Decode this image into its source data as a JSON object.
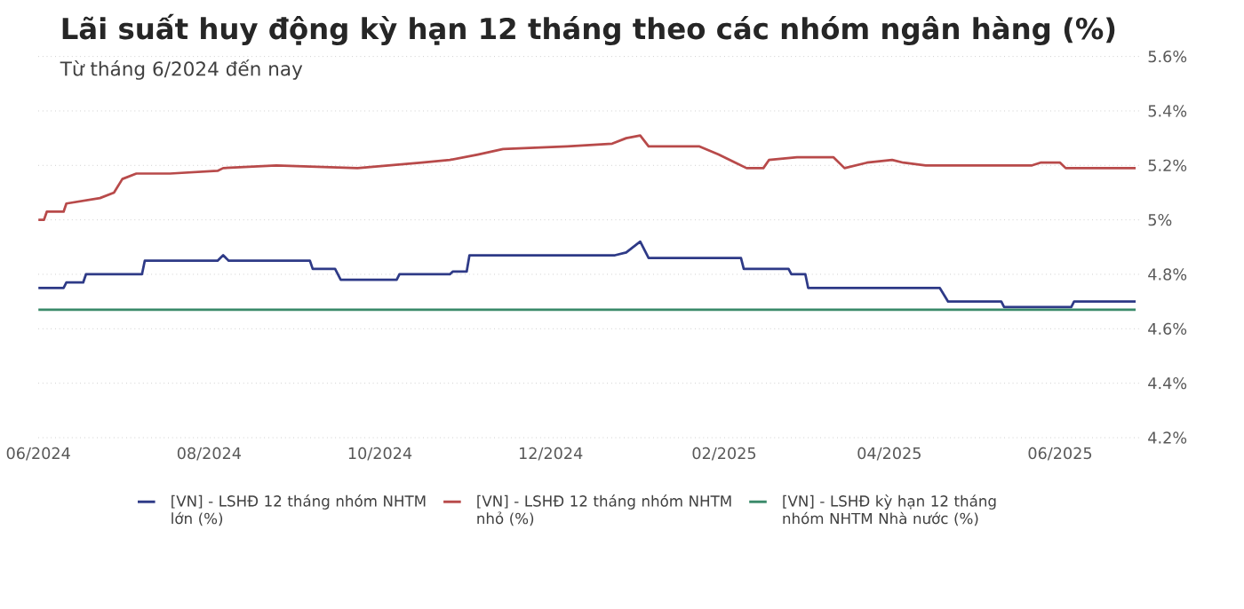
{
  "chart_data": {
    "type": "line",
    "title": "Lãi suất huy động kỳ hạn 12 tháng theo các nhóm ngân hàng (%)",
    "subtitle": "Từ tháng 6/2024 đến nay",
    "xlim": [
      "2024-06-01",
      "2025-06-30"
    ],
    "xticks": [
      {
        "value": "2024-06-01",
        "label": "06/2024"
      },
      {
        "value": "2024-08-01",
        "label": "08/2024"
      },
      {
        "value": "2024-10-01",
        "label": "10/2024"
      },
      {
        "value": "2024-12-01",
        "label": "12/2024"
      },
      {
        "value": "2025-02-01",
        "label": "02/2025"
      },
      {
        "value": "2025-04-01",
        "label": "04/2025"
      },
      {
        "value": "2025-06-01",
        "label": "06/2025"
      }
    ],
    "ylim": [
      4.2,
      5.6
    ],
    "yticks": [
      {
        "value": 4.2,
        "label": "4.2%"
      },
      {
        "value": 4.4,
        "label": "4.4%"
      },
      {
        "value": 4.6,
        "label": "4.6%"
      },
      {
        "value": 4.8,
        "label": "4.8%"
      },
      {
        "value": 5,
        "label": "5%"
      },
      {
        "value": 5.2,
        "label": "5.2%"
      },
      {
        "value": 5.4,
        "label": "5.4%"
      },
      {
        "value": 5.6,
        "label": "5.6%"
      }
    ],
    "grid": "y",
    "legend": "bottom",
    "marker": "none",
    "line_style": "solid",
    "series": [
      {
        "name": "[VN] - LSHĐ 12 tháng nhóm NHTM lớn (%)",
        "color": "#2e3a87",
        "x": [
          "2024-06-01",
          "2024-06-10",
          "2024-06-11",
          "2024-06-17",
          "2024-06-18",
          "2024-07-08",
          "2024-07-09",
          "2024-08-04",
          "2024-08-06",
          "2024-08-08",
          "2024-09-06",
          "2024-09-07",
          "2024-09-15",
          "2024-09-17",
          "2024-10-07",
          "2024-10-08",
          "2024-10-26",
          "2024-10-27",
          "2024-11-01",
          "2024-11-02",
          "2024-12-24",
          "2024-12-28",
          "2025-01-02",
          "2025-01-05",
          "2025-02-07",
          "2025-02-08",
          "2025-02-24",
          "2025-02-25",
          "2025-03-02",
          "2025-03-03",
          "2025-04-19",
          "2025-04-22",
          "2025-05-11",
          "2025-05-12",
          "2025-06-05",
          "2025-06-06",
          "2025-06-28"
        ],
        "values": [
          4.75,
          4.75,
          4.77,
          4.77,
          4.8,
          4.8,
          4.85,
          4.85,
          4.87,
          4.85,
          4.85,
          4.82,
          4.82,
          4.78,
          4.78,
          4.8,
          4.8,
          4.81,
          4.81,
          4.87,
          4.87,
          4.88,
          4.92,
          4.86,
          4.86,
          4.82,
          4.82,
          4.8,
          4.8,
          4.75,
          4.75,
          4.7,
          4.7,
          4.68,
          4.68,
          4.7,
          4.7
        ]
      },
      {
        "name": "[VN] - LSHĐ 12 tháng nhóm NHTM nhỏ (%)",
        "color": "#b84a4a",
        "x": [
          "2024-06-01",
          "2024-06-03",
          "2024-06-04",
          "2024-06-10",
          "2024-06-11",
          "2024-06-17",
          "2024-06-23",
          "2024-06-28",
          "2024-07-01",
          "2024-07-06",
          "2024-07-18",
          "2024-08-04",
          "2024-08-06",
          "2024-08-25",
          "2024-09-23",
          "2024-10-16",
          "2024-10-26",
          "2024-11-05",
          "2024-11-14",
          "2024-12-07",
          "2024-12-23",
          "2024-12-28",
          "2025-01-02",
          "2025-01-05",
          "2025-01-13",
          "2025-01-23",
          "2025-01-30",
          "2025-02-05",
          "2025-02-09",
          "2025-02-15",
          "2025-02-17",
          "2025-02-27",
          "2025-03-12",
          "2025-03-16",
          "2025-03-24",
          "2025-04-02",
          "2025-04-06",
          "2025-04-14",
          "2025-05-22",
          "2025-05-25",
          "2025-06-01",
          "2025-06-03",
          "2025-06-28"
        ],
        "values": [
          5.0,
          5.0,
          5.03,
          5.03,
          5.06,
          5.07,
          5.08,
          5.1,
          5.15,
          5.17,
          5.17,
          5.18,
          5.19,
          5.2,
          5.19,
          5.21,
          5.22,
          5.24,
          5.26,
          5.27,
          5.28,
          5.3,
          5.31,
          5.27,
          5.27,
          5.27,
          5.24,
          5.21,
          5.19,
          5.19,
          5.22,
          5.23,
          5.23,
          5.19,
          5.21,
          5.22,
          5.21,
          5.2,
          5.2,
          5.21,
          5.21,
          5.19,
          5.19
        ]
      },
      {
        "name": "[VN] - LSHĐ kỳ hạn 12 tháng nhóm NHTM Nhà nước (%)",
        "color": "#3a8a6a",
        "x": [
          "2024-06-01",
          "2025-01-01",
          "2025-06-28"
        ],
        "values": [
          4.67,
          4.67,
          4.67
        ]
      }
    ]
  }
}
